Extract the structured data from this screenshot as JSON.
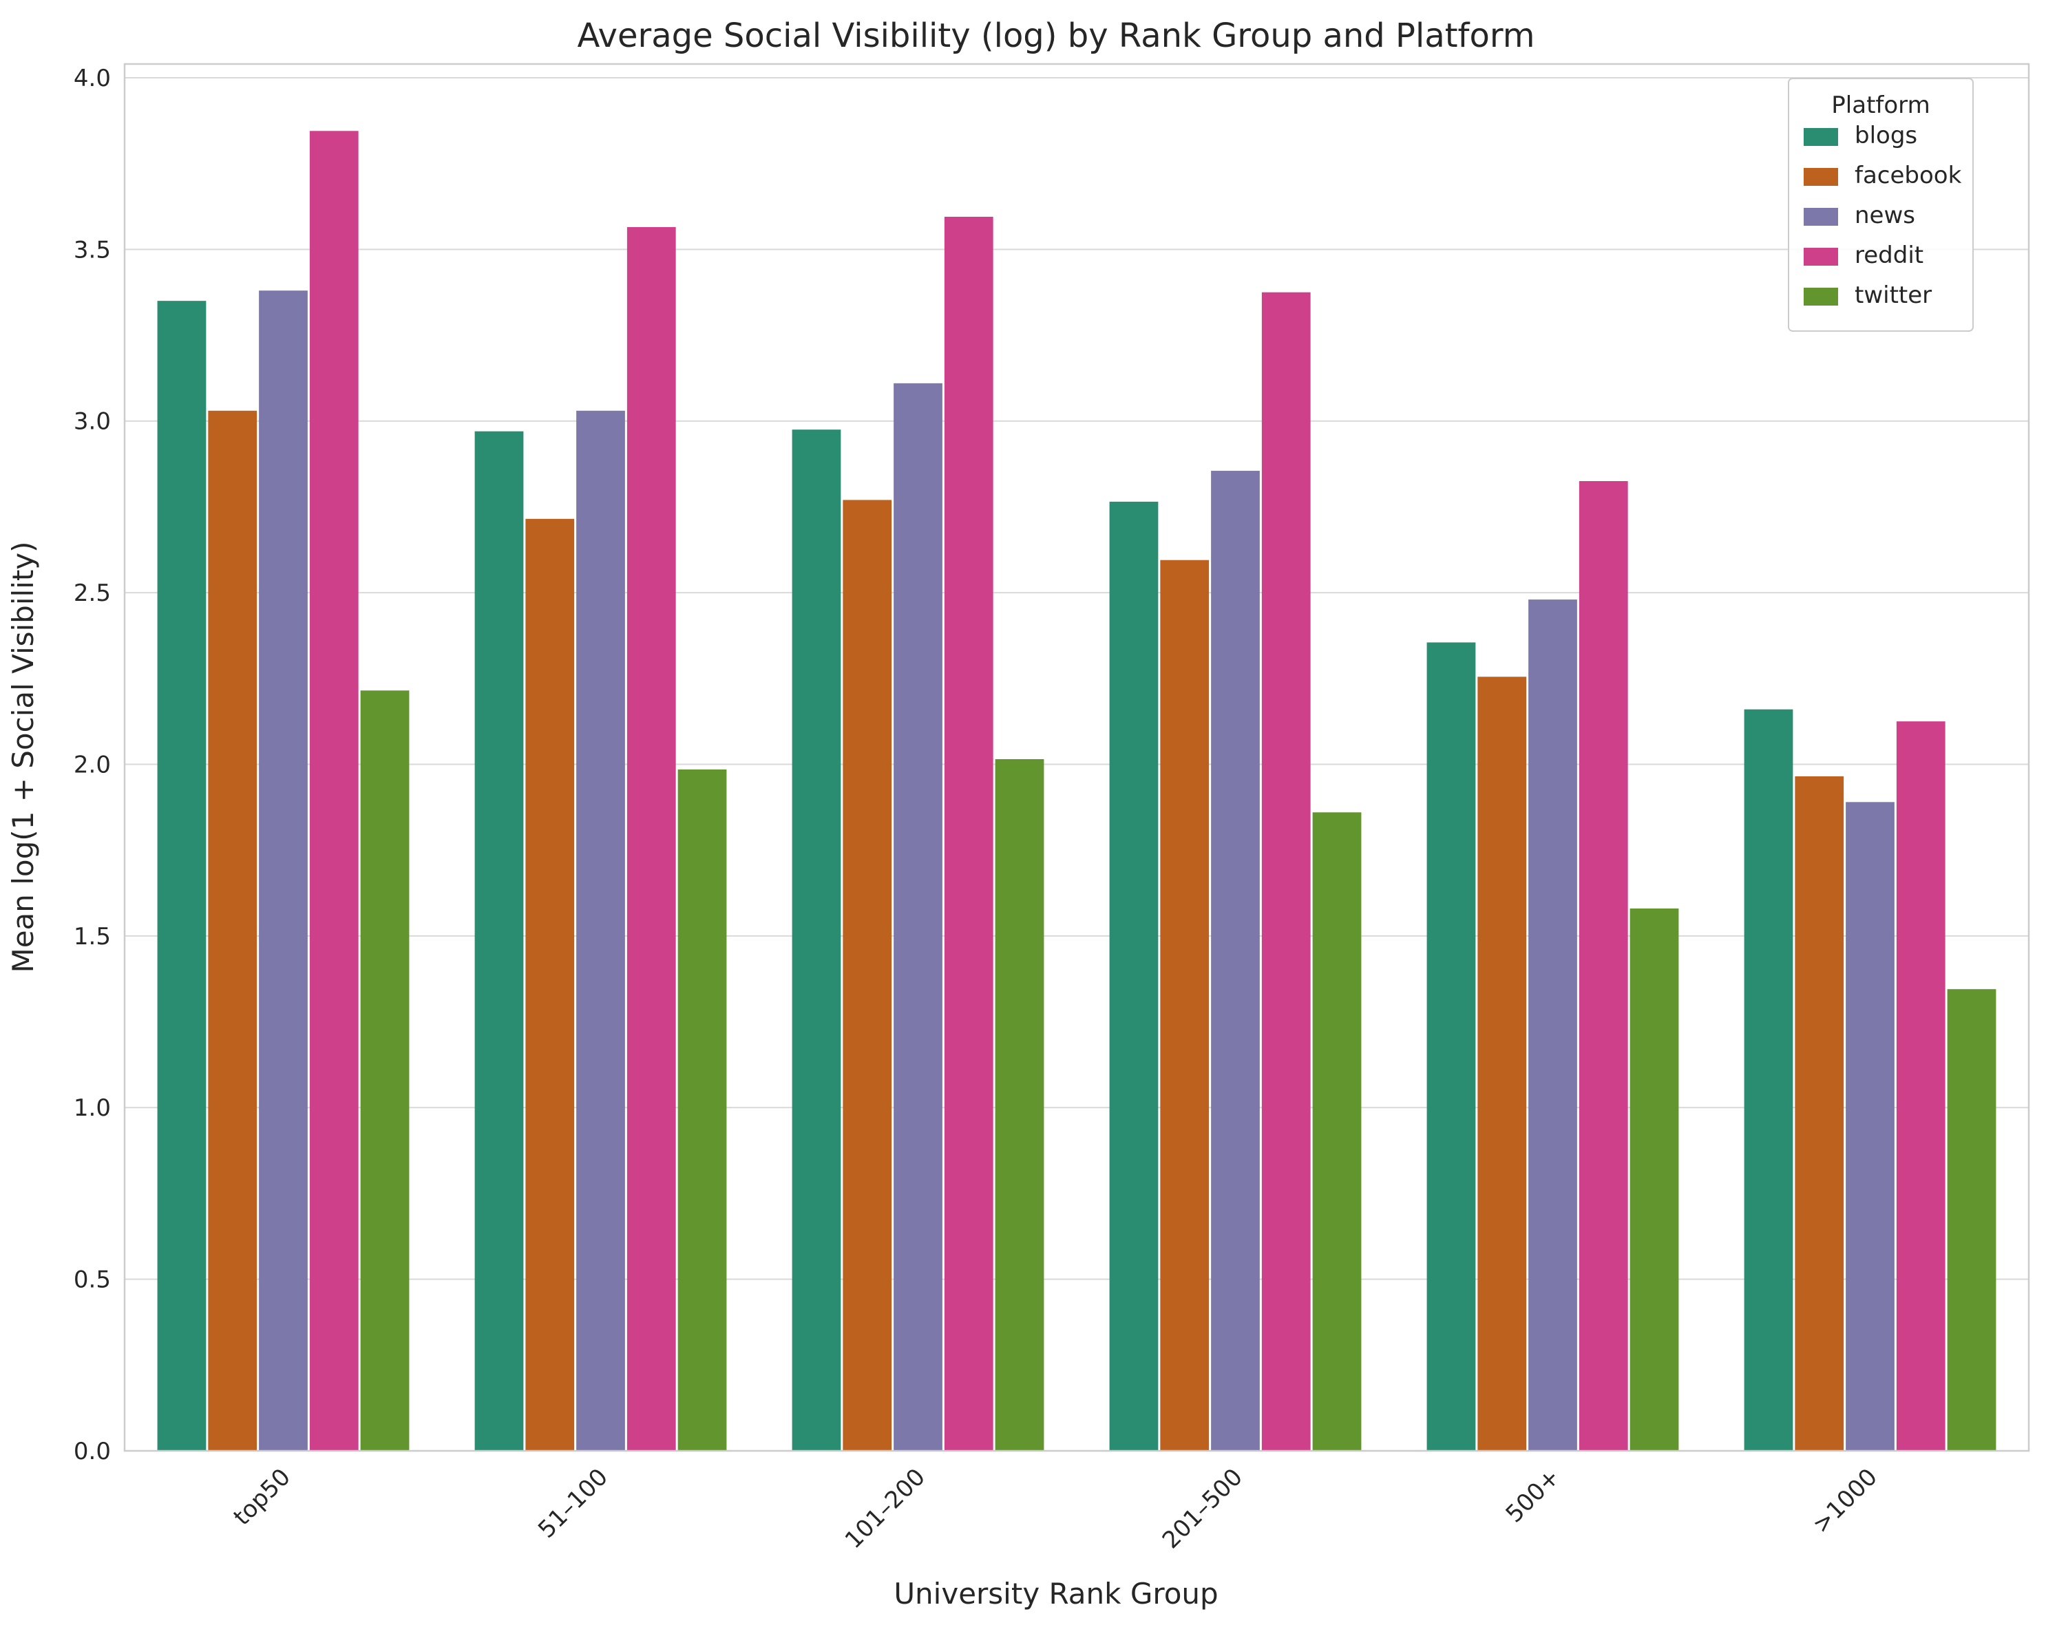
{
  "chart_data": {
    "type": "bar",
    "title": "Average Social Visibility (log) by Rank Group and Platform",
    "xlabel": "University Rank Group",
    "ylabel": "Mean log(1 + Social Visibility)",
    "categories": [
      "top50",
      "51–100",
      "101–200",
      "201–500",
      "500+",
      ">1000"
    ],
    "series": [
      {
        "name": "blogs",
        "color": "#2a8c70",
        "values": [
          3.35,
          2.97,
          2.975,
          2.765,
          2.355,
          2.16
        ]
      },
      {
        "name": "facebook",
        "color": "#bd611f",
        "values": [
          3.03,
          2.715,
          2.77,
          2.595,
          2.255,
          1.965
        ]
      },
      {
        "name": "news",
        "color": "#7c78aa",
        "values": [
          3.38,
          3.03,
          3.11,
          2.855,
          2.48,
          1.89
        ]
      },
      {
        "name": "reddit",
        "color": "#cf408b",
        "values": [
          3.845,
          3.565,
          3.595,
          3.375,
          2.825,
          2.125
        ]
      },
      {
        "name": "twitter",
        "color": "#63952f",
        "values": [
          2.215,
          1.985,
          2.015,
          1.86,
          1.58,
          1.345
        ]
      }
    ],
    "ylim": [
      0,
      4.04
    ],
    "yticks": [
      "0.0",
      "0.5",
      "1.0",
      "1.5",
      "2.0",
      "2.5",
      "3.0",
      "3.5",
      "4.0"
    ],
    "grid": "horizontal",
    "legend": {
      "title": "Platform",
      "position": "top-right"
    }
  }
}
